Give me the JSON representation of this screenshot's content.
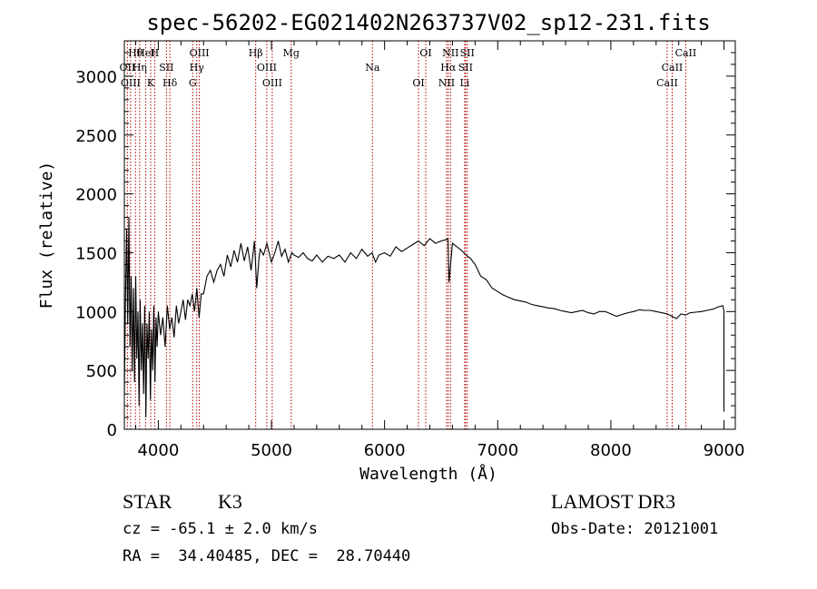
{
  "chart_data": {
    "type": "line",
    "title": "spec-56202-EG021402N263737V02_sp12-231.fits",
    "xlabel": "Wavelength (Å)",
    "ylabel": "Flux (relative)",
    "xlim": [
      3700,
      9100
    ],
    "ylim": [
      0,
      3300
    ],
    "xticks": [
      4000,
      5000,
      6000,
      7000,
      8000,
      9000
    ],
    "xtick_labels": [
      "4000",
      "5000",
      "6000",
      "7000",
      "8000",
      "9000"
    ],
    "yticks": [
      0,
      500,
      1000,
      1500,
      2000,
      2500,
      3000
    ],
    "ytick_labels": [
      "0",
      "500",
      "1000",
      "1500",
      "2000",
      "2500",
      "3000"
    ],
    "series": [
      {
        "name": "spectrum",
        "x": [
          3700,
          3710,
          3720,
          3730,
          3740,
          3750,
          3760,
          3770,
          3780,
          3790,
          3800,
          3810,
          3820,
          3830,
          3840,
          3850,
          3860,
          3870,
          3880,
          3890,
          3900,
          3910,
          3920,
          3930,
          3940,
          3950,
          3960,
          3970,
          3980,
          3990,
          4000,
          4020,
          4040,
          4060,
          4080,
          4100,
          4120,
          4140,
          4160,
          4180,
          4200,
          4220,
          4240,
          4260,
          4280,
          4300,
          4320,
          4340,
          4360,
          4380,
          4400,
          4430,
          4460,
          4490,
          4520,
          4550,
          4580,
          4610,
          4640,
          4670,
          4700,
          4730,
          4760,
          4790,
          4820,
          4850,
          4870,
          4890,
          4900,
          4930,
          4960,
          5000,
          5030,
          5060,
          5090,
          5120,
          5150,
          5180,
          5200,
          5240,
          5280,
          5320,
          5360,
          5400,
          5450,
          5500,
          5550,
          5600,
          5650,
          5700,
          5750,
          5800,
          5850,
          5890,
          5920,
          5950,
          6000,
          6050,
          6100,
          6150,
          6200,
          6250,
          6300,
          6350,
          6400,
          6450,
          6500,
          6540,
          6560,
          6570,
          6600,
          6640,
          6680,
          6720,
          6760,
          6800,
          6850,
          6900,
          6950,
          7000,
          7050,
          7100,
          7150,
          7200,
          7250,
          7300,
          7350,
          7400,
          7450,
          7500,
          7550,
          7600,
          7650,
          7700,
          7750,
          7800,
          7850,
          7900,
          7950,
          8000,
          8050,
          8100,
          8150,
          8200,
          8250,
          8300,
          8350,
          8400,
          8450,
          8500,
          8540,
          8580,
          8620,
          8660,
          8700,
          8750,
          8800,
          8850,
          8900,
          8950,
          8990,
          9000,
          9000
        ],
        "values": [
          300,
          1100,
          1700,
          900,
          1800,
          700,
          1300,
          500,
          1200,
          400,
          1300,
          600,
          1000,
          200,
          1100,
          500,
          900,
          300,
          1050,
          100,
          900,
          600,
          1000,
          250,
          850,
          500,
          1050,
          400,
          950,
          700,
          1000,
          800,
          950,
          700,
          1050,
          850,
          950,
          780,
          1050,
          900,
          1000,
          1100,
          930,
          1100,
          1050,
          1150,
          1000,
          1200,
          950,
          1150,
          1150,
          1300,
          1350,
          1250,
          1350,
          1400,
          1300,
          1480,
          1380,
          1520,
          1420,
          1580,
          1430,
          1550,
          1350,
          1600,
          1200,
          1450,
          1530,
          1480,
          1580,
          1420,
          1500,
          1600,
          1470,
          1530,
          1420,
          1500,
          1480,
          1460,
          1500,
          1450,
          1430,
          1480,
          1420,
          1470,
          1450,
          1480,
          1420,
          1500,
          1450,
          1530,
          1470,
          1500,
          1420,
          1480,
          1500,
          1470,
          1550,
          1510,
          1540,
          1570,
          1600,
          1560,
          1620,
          1580,
          1600,
          1610,
          1620,
          1250,
          1580,
          1550,
          1520,
          1480,
          1450,
          1400,
          1300,
          1270,
          1200,
          1170,
          1140,
          1120,
          1100,
          1090,
          1080,
          1060,
          1050,
          1040,
          1030,
          1025,
          1010,
          1000,
          990,
          1000,
          1010,
          990,
          980,
          1000,
          1000,
          980,
          960,
          975,
          990,
          1000,
          1015,
          1010,
          1010,
          1000,
          990,
          980,
          960,
          940,
          980,
          970,
          990,
          995,
          1000,
          1010,
          1020,
          1040,
          1050,
          1000,
          150
        ]
      }
    ],
    "line_marks": [
      {
        "label": "Hθ",
        "x": 3798
      },
      {
        "label": "OII",
        "x": 3727
      },
      {
        "label": "OIII",
        "x": 3755
      },
      {
        "label": "HeI",
        "x": 3889
      },
      {
        "label": "Hη",
        "x": 3835
      },
      {
        "label": "K",
        "x": 3933
      },
      {
        "label": "H",
        "x": 3968
      },
      {
        "label": "SII",
        "x": 4072
      },
      {
        "label": "Hδ",
        "x": 4102
      },
      {
        "label": "OIII",
        "x": 4363
      },
      {
        "label": "Hγ",
        "x": 4340
      },
      {
        "label": "G",
        "x": 4304
      },
      {
        "label": "Hβ",
        "x": 4861
      },
      {
        "label": "OIII",
        "x": 4959
      },
      {
        "label": "OIII",
        "x": 5007
      },
      {
        "label": "Mg",
        "x": 5175
      },
      {
        "label": "Na",
        "x": 5893
      },
      {
        "label": "OI",
        "x": 6300
      },
      {
        "label": "OI",
        "x": 6364
      },
      {
        "label": "Hα",
        "x": 6563
      },
      {
        "label": "NII",
        "x": 6548
      },
      {
        "label": "NII",
        "x": 6583
      },
      {
        "label": "SII",
        "x": 6716
      },
      {
        "label": "Li",
        "x": 6708
      },
      {
        "label": "SII",
        "x": 6731
      },
      {
        "label": "CaII",
        "x": 8542
      },
      {
        "label": "CaII",
        "x": 8498
      },
      {
        "label": "CaII",
        "x": 8662
      }
    ]
  },
  "footer": {
    "object_class": "STAR",
    "subclass": "K3",
    "survey": "LAMOST DR3",
    "cz": "cz = -65.1 ± 2.0 km/s",
    "obs_date": "Obs-Date: 20121001",
    "coords": "RA =  34.40485, DEC =  28.70440"
  },
  "colors": {
    "axis": "#000000",
    "spectrum": "#000000",
    "line_marker": "#b00000"
  }
}
